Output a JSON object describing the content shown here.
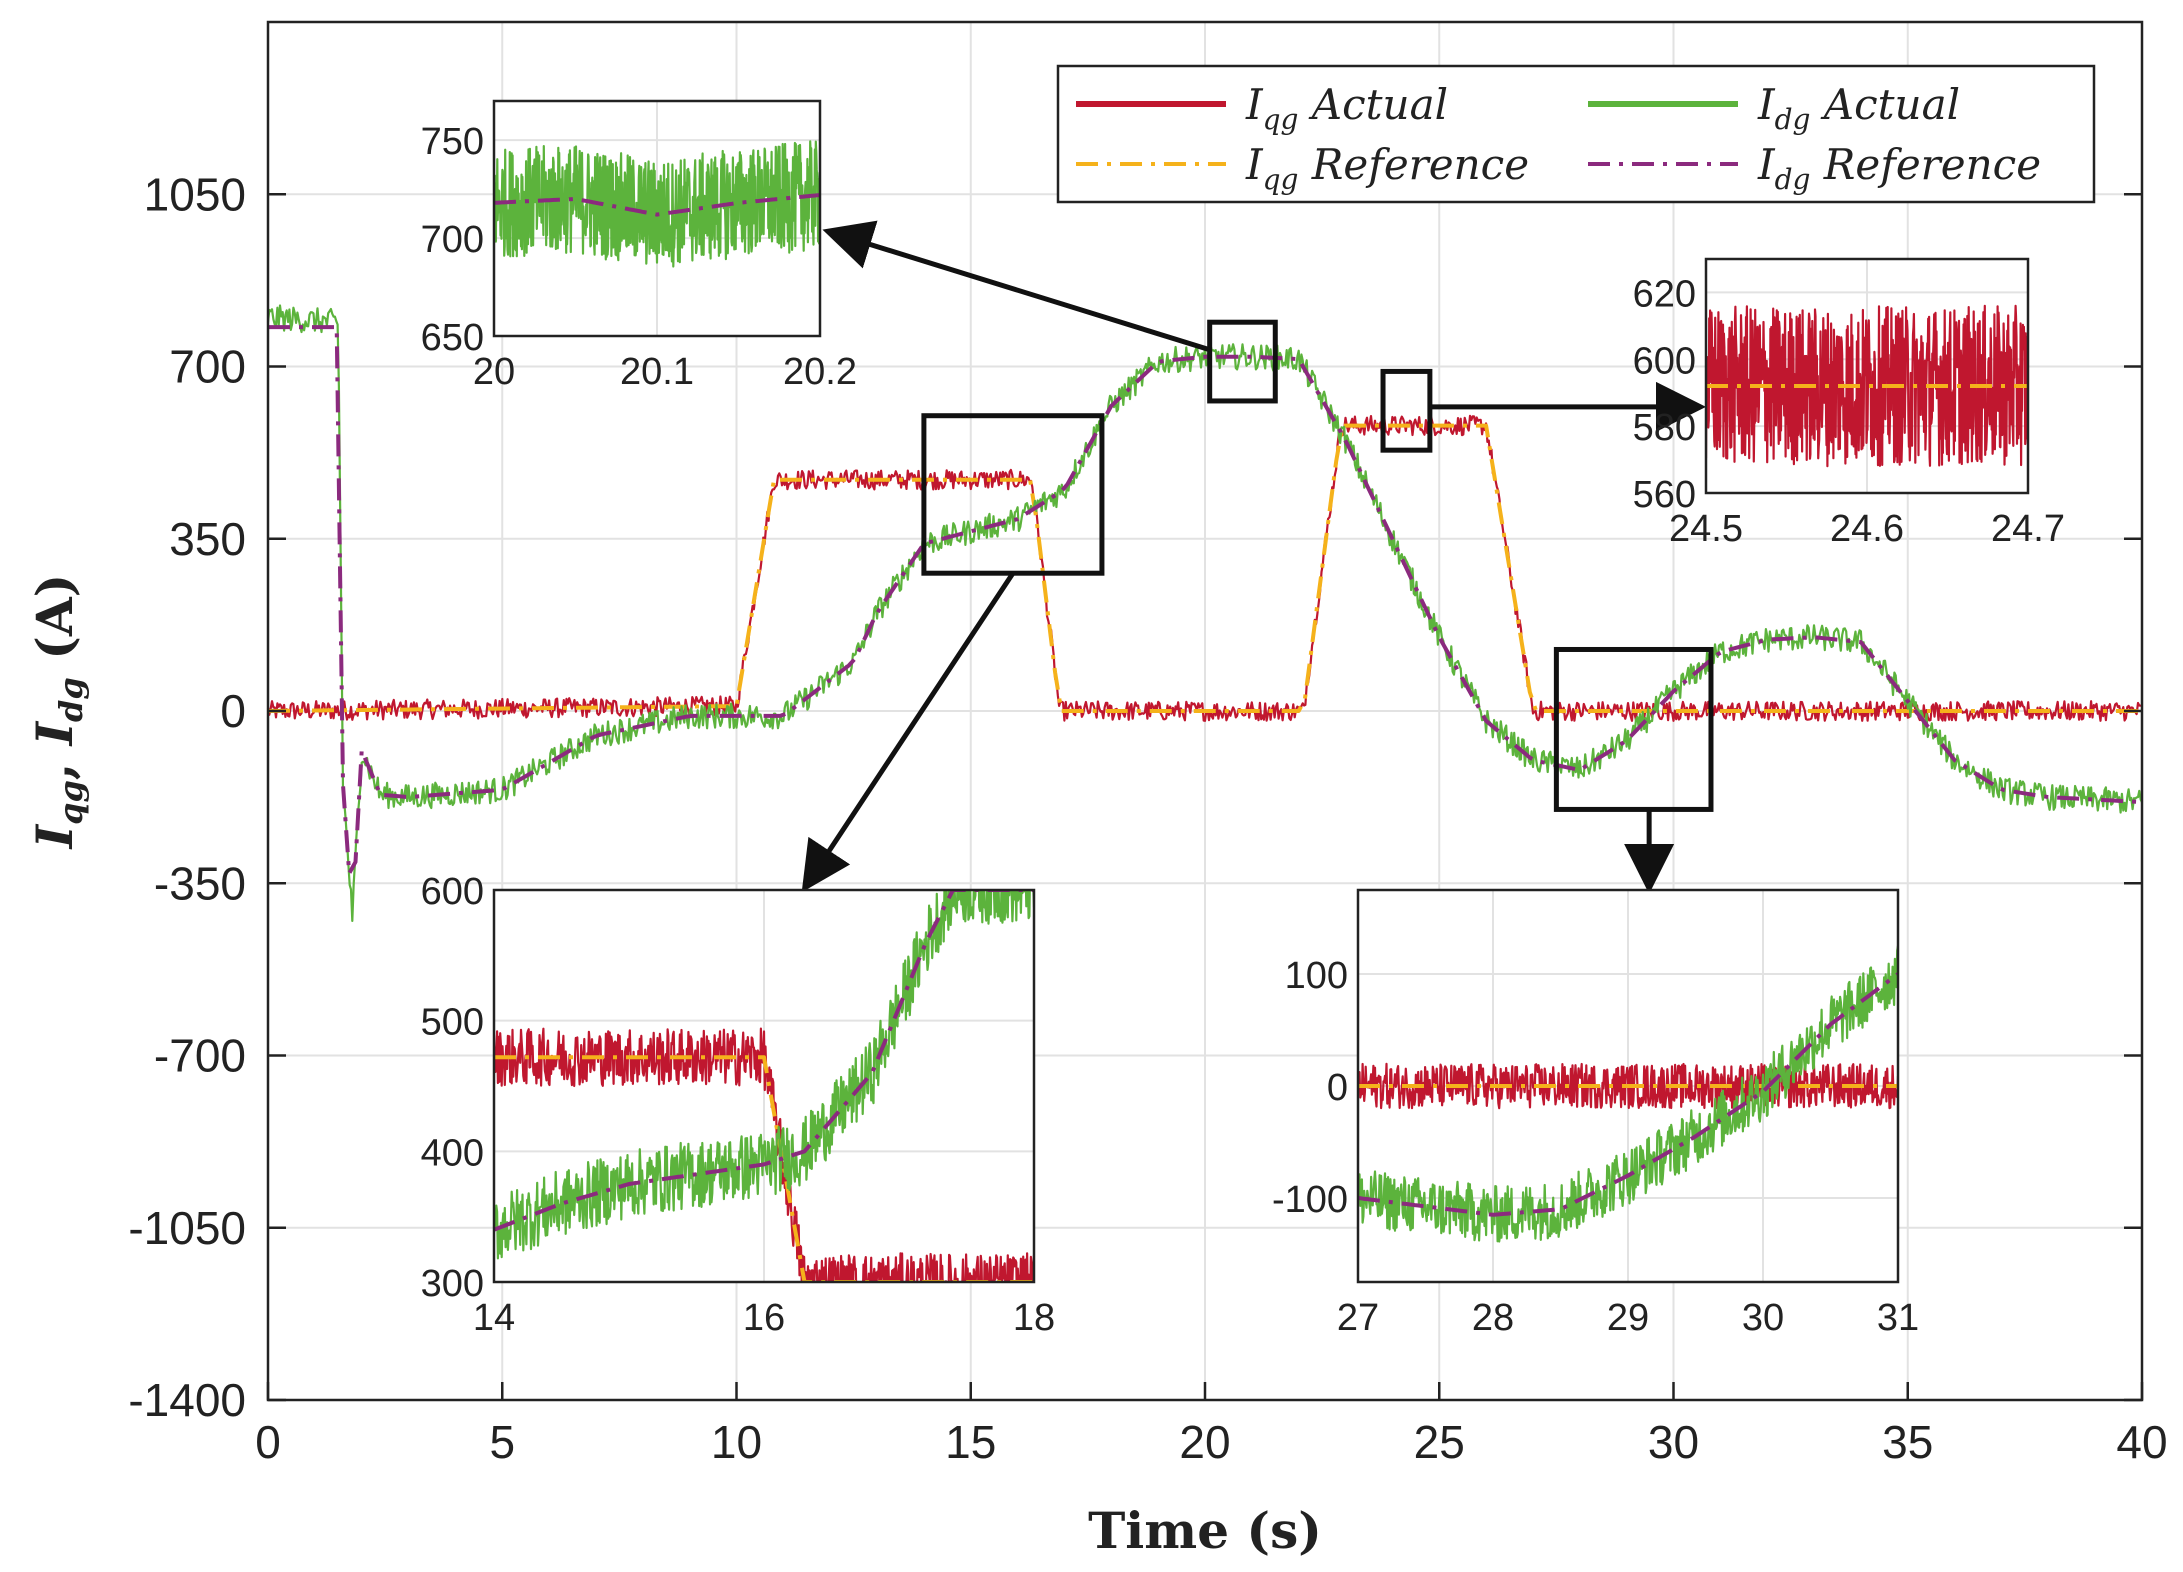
{
  "chart_data": {
    "type": "line",
    "xlabel": "Time (s)",
    "ylabel": "I_qg, I_dg (A)",
    "xlim": [
      0,
      40
    ],
    "ylim": [
      -1400,
      1400
    ],
    "xticks": [
      0,
      5,
      10,
      15,
      20,
      25,
      30,
      35,
      40
    ],
    "yticks": [
      -1400,
      -1050,
      -700,
      -350,
      0,
      350,
      700,
      1050
    ],
    "legend_position": "top-right",
    "series": [
      {
        "name": "I_qg Actual",
        "label_main": "I",
        "label_sub": "qg",
        "label_rest": "Actual",
        "color": "#c0172f",
        "style": "solid",
        "noise": 20,
        "points": [
          [
            0,
            0
          ],
          [
            10,
            10
          ],
          [
            10.8,
            470
          ],
          [
            16.3,
            470
          ],
          [
            16.9,
            0
          ],
          [
            22.1,
            0
          ],
          [
            22.9,
            580
          ],
          [
            26.0,
            580
          ],
          [
            27.0,
            0
          ],
          [
            40,
            0
          ]
        ]
      },
      {
        "name": "I_qg Reference",
        "label_main": "I",
        "label_sub": "qg",
        "label_rest": "Reference",
        "color": "#f5b21b",
        "style": "dashdot",
        "noise": 0,
        "points": [
          [
            0,
            0
          ],
          [
            10,
            10
          ],
          [
            10.8,
            470
          ],
          [
            16.3,
            470
          ],
          [
            16.9,
            0
          ],
          [
            22.1,
            0
          ],
          [
            22.9,
            580
          ],
          [
            26.0,
            580
          ],
          [
            27.0,
            0
          ],
          [
            40,
            0
          ]
        ]
      },
      {
        "name": "I_dg Actual",
        "label_main": "I",
        "label_sub": "dg",
        "label_rest": "Actual",
        "color": "#5cb33c",
        "style": "solid",
        "noise": 26,
        "points": [
          [
            0,
            800
          ],
          [
            1.5,
            790
          ],
          [
            1.6,
            -150
          ],
          [
            1.8,
            -420
          ],
          [
            2.0,
            -80
          ],
          [
            2.4,
            -170
          ],
          [
            3,
            -175
          ],
          [
            5,
            -160
          ],
          [
            7,
            -50
          ],
          [
            9,
            -10
          ],
          [
            11,
            -10
          ],
          [
            12.5,
            100
          ],
          [
            13,
            200
          ],
          [
            14,
            340
          ],
          [
            16,
            390
          ],
          [
            17,
            450
          ],
          [
            18,
            620
          ],
          [
            19,
            710
          ],
          [
            20,
            720
          ],
          [
            21,
            720
          ],
          [
            22,
            715
          ],
          [
            23,
            550
          ],
          [
            24,
            350
          ],
          [
            25,
            150
          ],
          [
            26,
            -20
          ],
          [
            27,
            -100
          ],
          [
            28,
            -120
          ],
          [
            29,
            -60
          ],
          [
            30,
            40
          ],
          [
            31,
            120
          ],
          [
            32,
            145
          ],
          [
            33,
            150
          ],
          [
            34,
            140
          ],
          [
            35,
            20
          ],
          [
            36,
            -100
          ],
          [
            37,
            -160
          ],
          [
            38,
            -175
          ],
          [
            40,
            -185
          ]
        ]
      },
      {
        "name": "I_dg Reference",
        "label_main": "I",
        "label_sub": "dg",
        "label_rest": "Reference",
        "color": "#8b2a7e",
        "style": "dashdot",
        "noise": 0,
        "points": [
          [
            0,
            780
          ],
          [
            1.5,
            780
          ],
          [
            1.6,
            -150
          ],
          [
            1.8,
            -420
          ],
          [
            2.0,
            -80
          ],
          [
            2.4,
            -170
          ],
          [
            3,
            -175
          ],
          [
            5,
            -160
          ],
          [
            7,
            -50
          ],
          [
            9,
            -10
          ],
          [
            11,
            -10
          ],
          [
            12.5,
            100
          ],
          [
            13,
            200
          ],
          [
            14,
            340
          ],
          [
            16,
            390
          ],
          [
            17,
            450
          ],
          [
            18,
            620
          ],
          [
            19,
            710
          ],
          [
            20,
            720
          ],
          [
            21,
            720
          ],
          [
            22,
            715
          ],
          [
            23,
            550
          ],
          [
            24,
            350
          ],
          [
            25,
            150
          ],
          [
            26,
            -20
          ],
          [
            27,
            -100
          ],
          [
            28,
            -120
          ],
          [
            29,
            -60
          ],
          [
            30,
            40
          ],
          [
            31,
            120
          ],
          [
            32,
            145
          ],
          [
            33,
            150
          ],
          [
            34,
            140
          ],
          [
            35,
            20
          ],
          [
            36,
            -100
          ],
          [
            37,
            -160
          ],
          [
            38,
            -175
          ],
          [
            40,
            -185
          ]
        ]
      }
    ],
    "insets": [
      {
        "name": "inset-20s",
        "xlim": [
          20,
          20.2
        ],
        "ylim": [
          650,
          770
        ],
        "xticks": [
          20,
          20.1,
          20.2
        ],
        "xtick_labels": [
          "20",
          "20.1",
          "20.2"
        ],
        "yticks": [
          650,
          700,
          750
        ],
        "ytick_labels": [
          "650",
          "700",
          "750"
        ],
        "series": [
          {
            "color": "#5cb33c",
            "style": "solid",
            "noise": 28,
            "points": [
              [
                20,
                718
              ],
              [
                20.05,
                720
              ],
              [
                20.1,
                712
              ],
              [
                20.15,
                718
              ],
              [
                20.2,
                722
              ]
            ]
          },
          {
            "color": "#8b2a7e",
            "style": "dashdot",
            "noise": 0,
            "points": [
              [
                20,
                718
              ],
              [
                20.05,
                720
              ],
              [
                20.1,
                712
              ],
              [
                20.15,
                718
              ],
              [
                20.2,
                722
              ]
            ]
          }
        ]
      },
      {
        "name": "inset-24s",
        "xlim": [
          24.5,
          24.7
        ],
        "ylim": [
          560,
          630
        ],
        "xticks": [
          24.5,
          24.6,
          24.7
        ],
        "xtick_labels": [
          "24.5",
          "24.6",
          "24.7"
        ],
        "yticks": [
          560,
          580,
          600,
          620
        ],
        "ytick_labels": [
          "560",
          "580",
          "600",
          "620"
        ],
        "series": [
          {
            "color": "#c0172f",
            "style": "solid",
            "noise": 24,
            "points": [
              [
                24.5,
                592
              ],
              [
                24.7,
                592
              ]
            ]
          },
          {
            "color": "#f5b21b",
            "style": "dashdot",
            "noise": 0,
            "points": [
              [
                24.5,
                592
              ],
              [
                24.7,
                592
              ]
            ]
          }
        ]
      },
      {
        "name": "inset-14-18s",
        "xlim": [
          14,
          18
        ],
        "ylim": [
          300,
          600
        ],
        "xticks": [
          14,
          16,
          18
        ],
        "xtick_labels": [
          "14",
          "16",
          "18"
        ],
        "yticks": [
          300,
          400,
          500,
          600
        ],
        "ytick_labels": [
          "300",
          "400",
          "500",
          "600"
        ],
        "series": [
          {
            "color": "#c0172f",
            "style": "solid",
            "noise": 22,
            "points": [
              [
                14,
                472
              ],
              [
                16,
                472
              ],
              [
                16.3,
                300
              ]
            ]
          },
          {
            "color": "#f5b21b",
            "style": "dashdot",
            "noise": 0,
            "points": [
              [
                14,
                472
              ],
              [
                16,
                472
              ],
              [
                16.3,
                300
              ]
            ]
          },
          {
            "color": "#5cb33c",
            "style": "solid",
            "noise": 26,
            "points": [
              [
                14,
                340
              ],
              [
                14.5,
                360
              ],
              [
                15,
                375
              ],
              [
                16,
                390
              ],
              [
                16.3,
                400
              ],
              [
                16.8,
                460
              ],
              [
                17.2,
                560
              ],
              [
                17.4,
                600
              ]
            ]
          },
          {
            "color": "#8b2a7e",
            "style": "dashdot",
            "noise": 0,
            "points": [
              [
                14,
                340
              ],
              [
                14.5,
                360
              ],
              [
                15,
                375
              ],
              [
                16,
                390
              ],
              [
                16.3,
                400
              ],
              [
                16.8,
                460
              ],
              [
                17.2,
                560
              ],
              [
                17.4,
                600
              ]
            ]
          }
        ]
      },
      {
        "name": "inset-27-31s",
        "xlim": [
          27,
          31
        ],
        "ylim": [
          -175,
          175
        ],
        "xticks": [
          27,
          28,
          29,
          30,
          31
        ],
        "xtick_labels": [
          "27",
          "28",
          "29",
          "30",
          "31"
        ],
        "yticks": [
          -100,
          0,
          100
        ],
        "ytick_labels": [
          "-100",
          "0",
          "100"
        ],
        "series": [
          {
            "color": "#c0172f",
            "style": "solid",
            "noise": 20,
            "points": [
              [
                27,
                0
              ],
              [
                31,
                0
              ]
            ]
          },
          {
            "color": "#f5b21b",
            "style": "dashdot",
            "noise": 0,
            "points": [
              [
                27,
                0
              ],
              [
                31,
                0
              ]
            ]
          },
          {
            "color": "#5cb33c",
            "style": "solid",
            "noise": 26,
            "points": [
              [
                27,
                -100
              ],
              [
                28,
                -115
              ],
              [
                28.5,
                -110
              ],
              [
                29,
                -80
              ],
              [
                29.5,
                -45
              ],
              [
                30,
                -5
              ],
              [
                30.5,
                55
              ],
              [
                31,
                100
              ]
            ]
          },
          {
            "color": "#8b2a7e",
            "style": "dashdot",
            "noise": 0,
            "points": [
              [
                27,
                -100
              ],
              [
                28,
                -115
              ],
              [
                28.5,
                -110
              ],
              [
                29,
                -80
              ],
              [
                29.5,
                -45
              ],
              [
                30,
                -5
              ],
              [
                30.5,
                55
              ],
              [
                31,
                100
              ]
            ]
          }
        ]
      }
    ],
    "zoom_boxes": [
      {
        "name": "zoom-box-20s",
        "x": [
          20.1,
          21.5
        ],
        "y": [
          630,
          790
        ],
        "target": "inset-20s"
      },
      {
        "name": "zoom-box-24s",
        "x": [
          23.8,
          24.8
        ],
        "y": [
          530,
          690
        ],
        "target": "inset-24s"
      },
      {
        "name": "zoom-box-14-18s",
        "x": [
          14,
          17.8
        ],
        "y": [
          280,
          600
        ],
        "target": "inset-14-18s"
      },
      {
        "name": "zoom-box-27-31s",
        "x": [
          27.5,
          30.8
        ],
        "y": [
          -200,
          125
        ],
        "target": "inset-27-31s"
      }
    ]
  }
}
